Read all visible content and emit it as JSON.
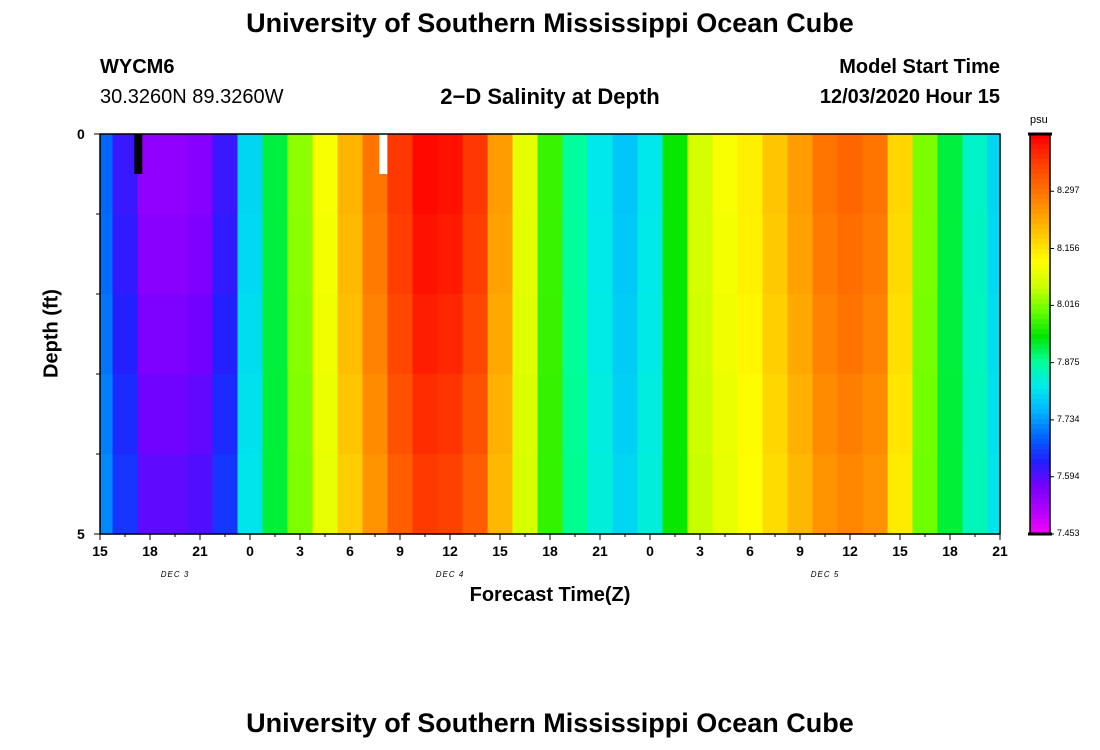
{
  "header": {
    "title_top": "University of Southern Mississippi Ocean Cube",
    "title_bottom": "University of Southern Mississippi Ocean Cube",
    "station_id": "WYCM6",
    "station_coords": "30.3260N 89.3260W",
    "plot_title": "2−D Salinity at Depth",
    "model_start_label": "Model Start Time",
    "model_start_value": "12/03/2020 Hour 15"
  },
  "chart_data": {
    "type": "heatmap",
    "title": "2−D Salinity at Depth",
    "xlabel": "Forecast Time(Z)",
    "ylabel": "Depth (ft)",
    "x_tick_labels": [
      "15",
      "18",
      "21",
      "0",
      "3",
      "6",
      "9",
      "12",
      "15",
      "18",
      "21",
      "0",
      "3",
      "6",
      "9",
      "12",
      "15",
      "18",
      "21"
    ],
    "day_labels": [
      {
        "label": "DEC 3",
        "at_tick_index": 1.5
      },
      {
        "label": "DEC 4",
        "at_tick_index": 7
      },
      {
        "label": "DEC 5",
        "at_tick_index": 14.5
      }
    ],
    "y_tick_labels": [
      "0",
      "5"
    ],
    "ylim": [
      0,
      5
    ],
    "y_minor_ticks": 5,
    "colorbar": {
      "unit": "psu",
      "min": 7.453,
      "max": 8.438,
      "tick_values": [
        "8.297",
        "8.156",
        "8.016",
        "7.875",
        "7.734",
        "7.594",
        "7.453"
      ],
      "colors": [
        "#ff00ff",
        "#b400ff",
        "#7700ff",
        "#2020ff",
        "#0066ff",
        "#00b4ff",
        "#00eaea",
        "#00ff99",
        "#00e600",
        "#66ff00",
        "#ccff00",
        "#ffff00",
        "#ffcc00",
        "#ff9900",
        "#ff6a00",
        "#ff3a00",
        "#ff0000"
      ]
    },
    "hours": [
      0,
      1.5,
      3,
      4.5,
      6,
      7.5,
      9,
      10.5,
      12,
      13.5,
      15,
      16.5,
      18,
      19.5,
      21,
      22.5,
      24,
      25.5,
      27,
      28.5,
      30,
      31.5,
      33,
      34.5,
      36,
      37.5,
      39,
      40.5,
      42,
      43.5,
      45,
      46.5,
      48,
      49.5,
      51,
      52.5,
      54
    ],
    "depth_rows": [
      0,
      1,
      2,
      3,
      4
    ],
    "surface_salinity": [
      7.7,
      7.62,
      7.55,
      7.55,
      7.56,
      7.62,
      7.8,
      7.92,
      8.03,
      8.12,
      8.22,
      8.3,
      8.38,
      8.43,
      8.42,
      8.38,
      8.25,
      8.1,
      7.98,
      7.88,
      7.82,
      7.78,
      7.82,
      7.95,
      8.08,
      8.12,
      8.15,
      8.2,
      8.25,
      8.3,
      8.32,
      8.3,
      8.18,
      8.02,
      7.92,
      7.85,
      7.8
    ],
    "depth_offset": [
      0.0,
      0.05,
      0.12,
      0.2,
      0.28
    ],
    "data_gaps": [
      {
        "hour": 2.3,
        "color": "black",
        "depth_from": 0,
        "depth_to": 0.5
      },
      {
        "hour": 17.0,
        "color": "white",
        "depth_from": 0,
        "depth_to": 0.5
      }
    ]
  }
}
